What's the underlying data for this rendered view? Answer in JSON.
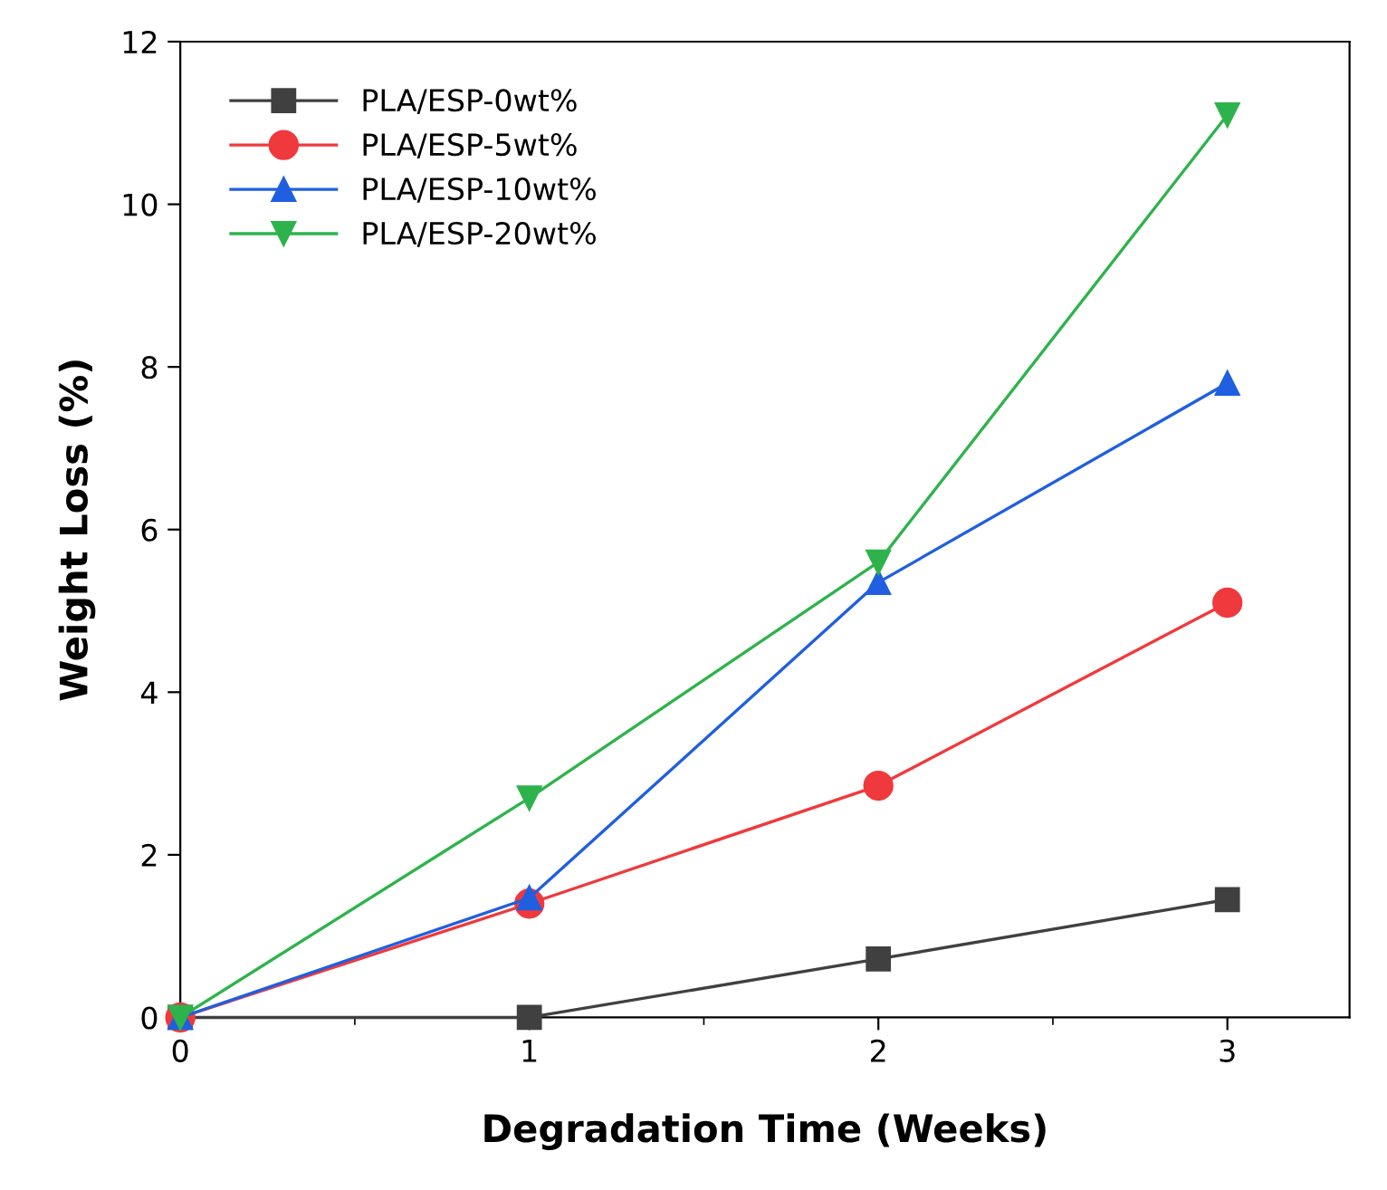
{
  "chart_data": {
    "type": "line",
    "xlabel": "Degradation Time (Weeks)",
    "ylabel": "Weight Loss (%)",
    "x": [
      0,
      1,
      2,
      3
    ],
    "series": [
      {
        "name": "PLA/ESP-0wt%",
        "color": "#404040",
        "marker": "square",
        "values": [
          0,
          0,
          0.72,
          1.45
        ]
      },
      {
        "name": "PLA/ESP-5wt%",
        "color": "#f0393c",
        "marker": "circle",
        "values": [
          0,
          1.4,
          2.85,
          5.1
        ]
      },
      {
        "name": "PLA/ESP-10wt%",
        "color": "#1f5fe0",
        "marker": "triangle",
        "values": [
          0,
          1.47,
          5.35,
          7.8
        ]
      },
      {
        "name": "PLA/ESP-20wt%",
        "color": "#2eb34c",
        "marker": "triangle_down",
        "values": [
          0,
          2.7,
          5.6,
          11.1
        ]
      }
    ],
    "xlim": [
      0,
      3.35
    ],
    "xticks": [
      0,
      1,
      2,
      3
    ],
    "ylim": [
      0,
      12
    ],
    "yticks": [
      0,
      2,
      4,
      6,
      8,
      10,
      12
    ],
    "legend": "top left",
    "grid": false,
    "line_style": "solid"
  }
}
